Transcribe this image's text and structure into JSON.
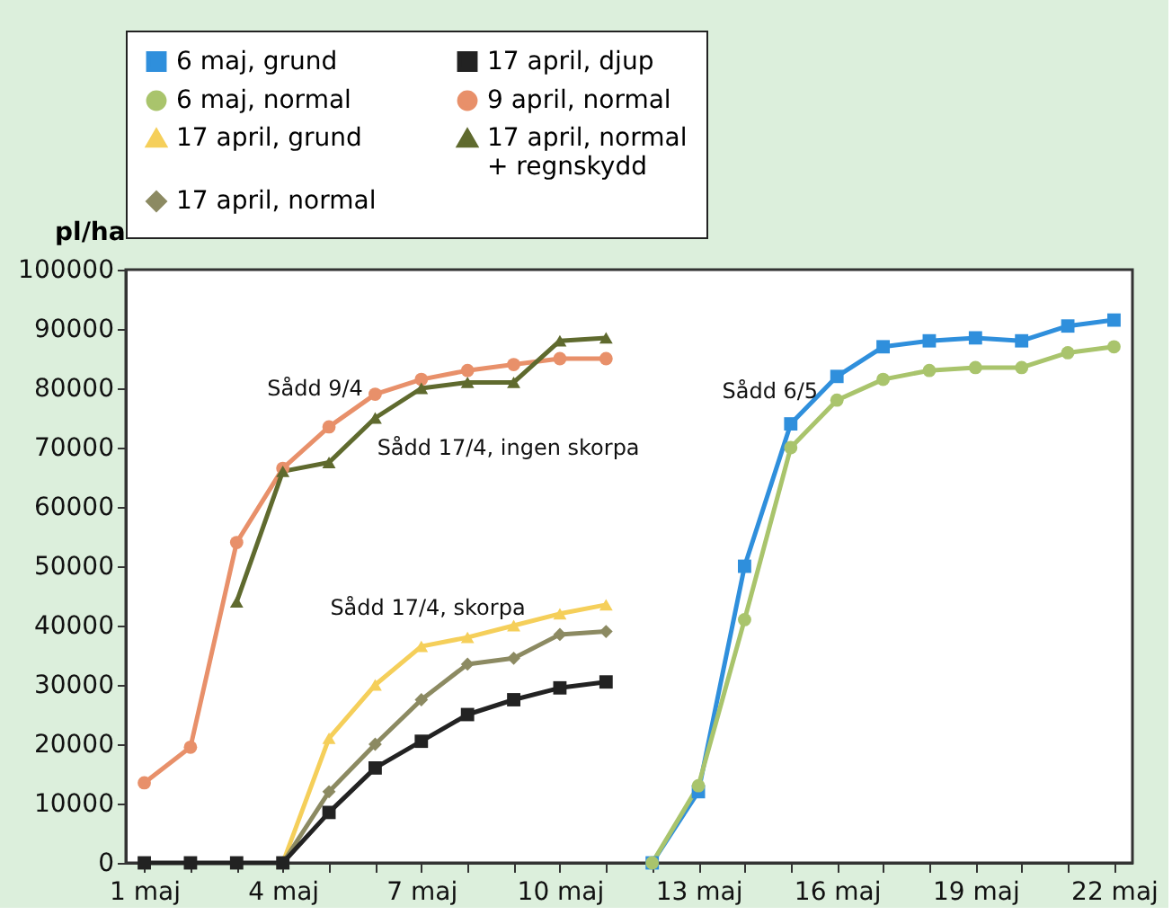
{
  "chart_data": {
    "type": "line",
    "ylabel": "pl/ha",
    "xlim": [
      0.6,
      22.4
    ],
    "xticks": [
      {
        "value": 1,
        "label": "1 maj"
      },
      {
        "value": 2,
        "label": null
      },
      {
        "value": 3,
        "label": null
      },
      {
        "value": 4,
        "label": "4 maj"
      },
      {
        "value": 5,
        "label": null
      },
      {
        "value": 6,
        "label": null
      },
      {
        "value": 7,
        "label": "7 maj"
      },
      {
        "value": 8,
        "label": null
      },
      {
        "value": 9,
        "label": null
      },
      {
        "value": 10,
        "label": "10 maj"
      },
      {
        "value": 11,
        "label": null
      },
      {
        "value": 12,
        "label": null
      },
      {
        "value": 13,
        "label": "13 maj"
      },
      {
        "value": 14,
        "label": null
      },
      {
        "value": 15,
        "label": null
      },
      {
        "value": 16,
        "label": "16 maj"
      },
      {
        "value": 17,
        "label": null
      },
      {
        "value": 18,
        "label": null
      },
      {
        "value": 19,
        "label": "19 maj"
      },
      {
        "value": 20,
        "label": null
      },
      {
        "value": 21,
        "label": null
      },
      {
        "value": 22,
        "label": "22 maj"
      }
    ],
    "ylim": [
      0,
      100000
    ],
    "yticks": [
      0,
      10000,
      20000,
      30000,
      40000,
      50000,
      60000,
      70000,
      80000,
      90000,
      100000
    ],
    "grid": false,
    "legend": "top",
    "series": [
      {
        "name": "6 maj, grund",
        "color": "#2f8fdc",
        "marker": "square",
        "x": [
          12,
          13,
          14,
          15,
          16,
          17,
          18,
          19,
          20,
          21,
          22
        ],
        "values": [
          0,
          12000,
          50000,
          74000,
          82000,
          87000,
          88000,
          88500,
          88000,
          90500,
          91500
        ]
      },
      {
        "name": "6 maj, normal",
        "color": "#a9c46c",
        "marker": "circle",
        "x": [
          12,
          13,
          14,
          15,
          16,
          17,
          18,
          19,
          20,
          21,
          22
        ],
        "values": [
          0,
          13000,
          41000,
          70000,
          78000,
          81500,
          83000,
          83500,
          83500,
          86000,
          87000
        ]
      },
      {
        "name": "17 april, grund",
        "color": "#f5cf5a",
        "marker": "triangle",
        "x": [
          4,
          5,
          6,
          7,
          8,
          9,
          10,
          11
        ],
        "values": [
          0,
          21000,
          30000,
          36500,
          38000,
          40000,
          42000,
          43500
        ]
      },
      {
        "name": "17 april, normal",
        "color": "#8c8a62",
        "marker": "diamond",
        "x": [
          4,
          5,
          6,
          7,
          8,
          9,
          10,
          11
        ],
        "values": [
          0,
          12000,
          20000,
          27500,
          33500,
          34500,
          38500,
          39000
        ]
      },
      {
        "name": "17 april, djup",
        "color": "#222222",
        "marker": "square",
        "x": [
          1,
          2,
          3,
          4,
          5,
          6,
          7,
          8,
          9,
          10,
          11
        ],
        "values": [
          0,
          0,
          0,
          0,
          8500,
          16000,
          20500,
          25000,
          27500,
          29500,
          30500
        ]
      },
      {
        "name": "9 april, normal",
        "color": "#e8906a",
        "marker": "circle",
        "x": [
          1,
          2,
          3,
          4,
          5,
          6,
          7,
          8,
          9,
          10,
          11
        ],
        "values": [
          13500,
          19500,
          54000,
          66500,
          73500,
          79000,
          81500,
          83000,
          84000,
          85000,
          85000
        ]
      },
      {
        "name": "17 april, normal\n+ regnskydd",
        "color": "#5f6a2e",
        "marker": "triangle",
        "x": [
          3,
          4,
          5,
          6,
          7,
          8,
          9,
          10,
          11
        ],
        "values": [
          44000,
          66000,
          67500,
          75000,
          80000,
          81000,
          81000,
          88000,
          88500
        ]
      }
    ],
    "annotations": [
      "Sådd 9/4",
      "Sådd 17/4, ingen skorpa",
      "Sådd 17/4, skorpa",
      "Sådd 6/5"
    ]
  }
}
